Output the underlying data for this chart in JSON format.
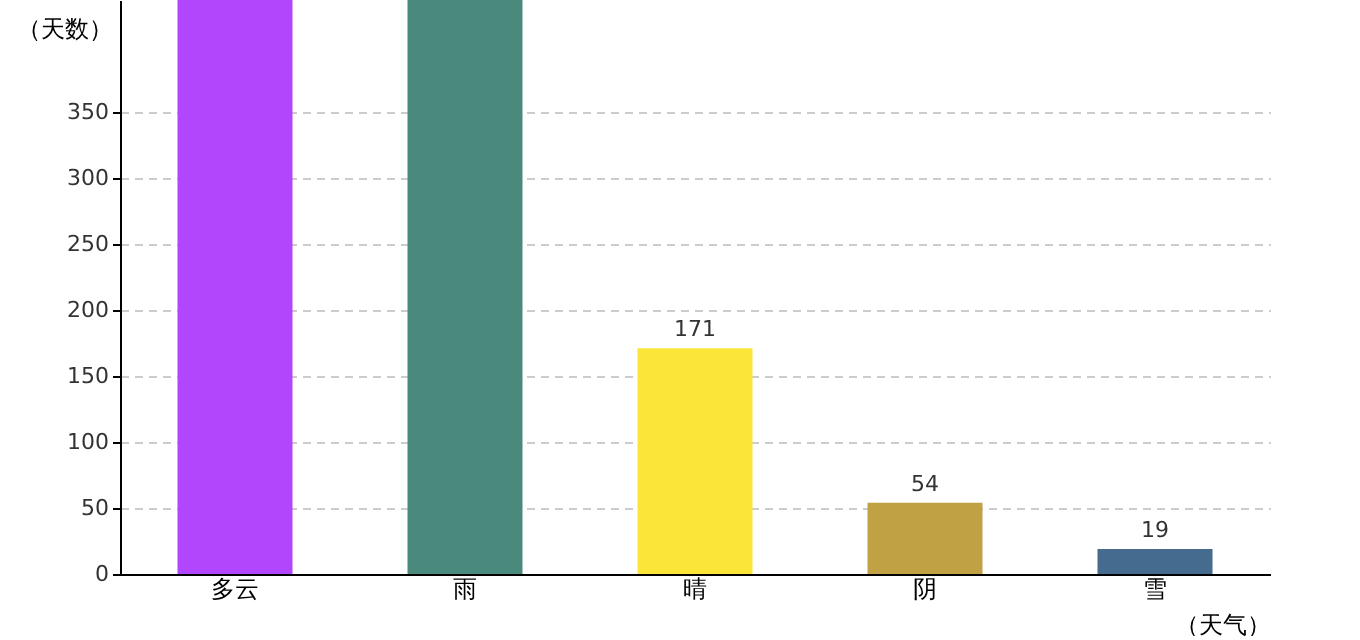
{
  "chart_data": {
    "type": "bar",
    "ylabel": "（天数）",
    "xlabel": "（天气）",
    "categories": [
      "多云",
      "雨",
      "晴",
      "阴",
      "雪"
    ],
    "values": [
      435,
      435,
      171,
      54,
      19
    ],
    "colors": [
      "#b146fc",
      "#4a8a7c",
      "#fae538",
      "#c0a144",
      "#456b8f"
    ],
    "value_labels": [
      null,
      null,
      "171",
      "54",
      "19"
    ],
    "ylim": [
      0,
      435
    ],
    "yticks": [
      0,
      50,
      100,
      150,
      200,
      250,
      300,
      350
    ],
    "grid": "y"
  }
}
